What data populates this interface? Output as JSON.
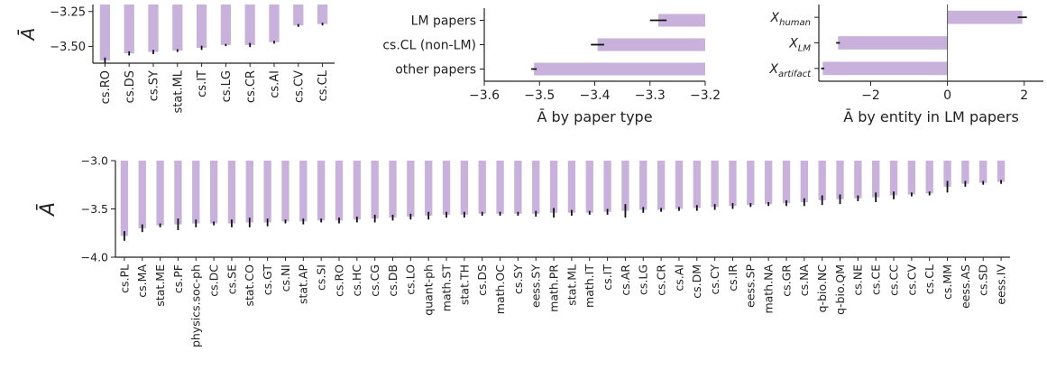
{
  "bar_color": "#c8b2dc",
  "error_color": "#111111",
  "chart_data": [
    {
      "type": "bar",
      "orientation": "vertical",
      "ylabel": "Ā",
      "ylim": [
        -3.62,
        -3.2
      ],
      "yticks": [
        -3.25,
        -3.5
      ],
      "ytick_labels": [
        "−3.25",
        "−3.50"
      ],
      "categories": [
        "cs.RO",
        "cs.DS",
        "cs.SY",
        "stat.ML",
        "cs.IT",
        "cs.LG",
        "cs.CR",
        "cs.AI",
        "cs.CV",
        "cs.CL"
      ],
      "values": [
        -3.6,
        -3.55,
        -3.54,
        -3.53,
        -3.51,
        -3.49,
        -3.49,
        -3.47,
        -3.35,
        -3.34
      ],
      "errors": [
        0.02,
        0.015,
        0.015,
        0.01,
        0.015,
        0.008,
        0.015,
        0.01,
        0.01,
        0.01
      ]
    },
    {
      "type": "bar",
      "orientation": "horizontal",
      "xlabel": "Ā by paper type",
      "xlim": [
        -3.6,
        -3.2
      ],
      "xticks": [
        -3.6,
        -3.5,
        -3.4,
        -3.3,
        -3.2
      ],
      "xtick_labels": [
        "−3.6",
        "−3.5",
        "−3.4",
        "−3.3",
        "−3.2"
      ],
      "categories": [
        "LM papers",
        "cs.CL (non-LM)",
        "other papers"
      ],
      "values": [
        -3.285,
        -3.395,
        -3.51
      ],
      "errors": [
        0.015,
        0.012,
        0.005
      ]
    },
    {
      "type": "bar",
      "orientation": "horizontal",
      "xlabel": "Ā by entity in LM papers",
      "xlim": [
        -3.35,
        2.5
      ],
      "xticks": [
        -2,
        0,
        2
      ],
      "xtick_labels": [
        "−2",
        "0",
        "2"
      ],
      "categories": [
        {
          "base": "X",
          "sub": "human"
        },
        {
          "base": "X",
          "sub": "LM"
        },
        {
          "base": "X",
          "sub": "artifact"
        }
      ],
      "values": [
        1.95,
        -2.85,
        -3.25
      ],
      "errors": [
        0.12,
        0.05,
        0.04
      ]
    },
    {
      "type": "bar",
      "orientation": "vertical",
      "ylabel": "Ā",
      "ylim": [
        -4.0,
        -3.0
      ],
      "yticks": [
        -3.0,
        -3.5,
        -4.0
      ],
      "ytick_labels": [
        "−3.0",
        "−3.5",
        "−4.0"
      ],
      "categories": [
        "cs.PL",
        "cs.MA",
        "stat.ME",
        "cs.PF",
        "physics.soc-ph",
        "cs.DC",
        "cs.SE",
        "stat.CO",
        "cs.GT",
        "cs.NI",
        "stat.AP",
        "cs.SI",
        "cs.RO",
        "cs.HC",
        "cs.CG",
        "cs.DB",
        "cs.LO",
        "quant-ph",
        "math.ST",
        "stat.TH",
        "cs.DS",
        "math.OC",
        "cs.SY",
        "eess.SY",
        "math.PR",
        "stat.ML",
        "math.IT",
        "cs.IT",
        "cs.AR",
        "cs.LG",
        "cs.CR",
        "cs.AI",
        "cs.DM",
        "cs.CY",
        "cs.IR",
        "eess.SP",
        "math.NA",
        "cs.GR",
        "cs.NA",
        "q-bio.NC",
        "q-bio.QM",
        "cs.NE",
        "cs.CE",
        "cs.CC",
        "cs.CV",
        "cs.CL",
        "cs.MM",
        "eess.AS",
        "cs.SD",
        "eess.IV"
      ],
      "values": [
        -3.78,
        -3.7,
        -3.67,
        -3.66,
        -3.65,
        -3.65,
        -3.65,
        -3.64,
        -3.64,
        -3.63,
        -3.63,
        -3.62,
        -3.62,
        -3.61,
        -3.6,
        -3.59,
        -3.58,
        -3.57,
        -3.56,
        -3.56,
        -3.55,
        -3.55,
        -3.55,
        -3.55,
        -3.54,
        -3.54,
        -3.54,
        -3.53,
        -3.52,
        -3.51,
        -3.51,
        -3.5,
        -3.49,
        -3.48,
        -3.47,
        -3.46,
        -3.45,
        -3.44,
        -3.43,
        -3.41,
        -3.4,
        -3.39,
        -3.38,
        -3.36,
        -3.35,
        -3.34,
        -3.27,
        -3.24,
        -3.23,
        -3.22
      ],
      "errors": [
        0.05,
        0.04,
        0.02,
        0.06,
        0.04,
        0.02,
        0.04,
        0.05,
        0.04,
        0.02,
        0.03,
        0.02,
        0.03,
        0.03,
        0.04,
        0.03,
        0.03,
        0.04,
        0.03,
        0.03,
        0.02,
        0.02,
        0.02,
        0.03,
        0.05,
        0.03,
        0.02,
        0.03,
        0.07,
        0.03,
        0.02,
        0.02,
        0.03,
        0.03,
        0.03,
        0.02,
        0.02,
        0.03,
        0.04,
        0.05,
        0.05,
        0.03,
        0.05,
        0.04,
        0.02,
        0.02,
        0.06,
        0.03,
        0.02,
        0.02
      ]
    }
  ]
}
